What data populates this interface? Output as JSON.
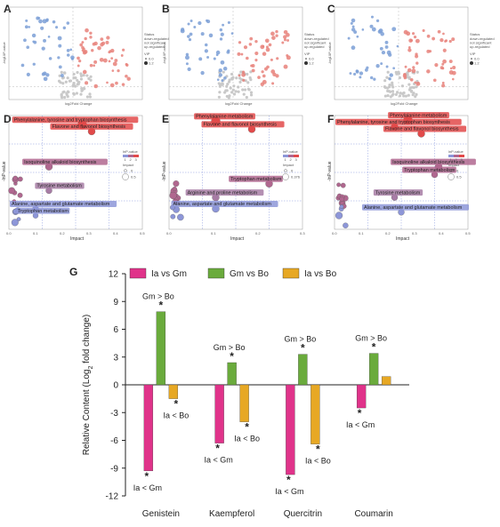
{
  "panels": {
    "A": "A",
    "B": "B",
    "C": "C",
    "D": "D",
    "E": "E",
    "F": "F",
    "G": "G"
  },
  "volcano": {
    "x_label": "log2Fold Change",
    "y_label": "-log10P-value",
    "legend_status": "Status",
    "legend_status_items": [
      "down-regulated",
      "not significant",
      "up-regulated"
    ],
    "legend_vip": "VIP",
    "legend_vip_items": [
      "0.0",
      "1.2"
    ],
    "colors": {
      "down": "#7b9fd6",
      "ns": "#c9c9c9",
      "up": "#e8817a"
    }
  },
  "pathway": {
    "x_label": "Impact",
    "y_label": "-lnP-value",
    "legend_title": "lnP-value",
    "legend_impact": "Impact",
    "D": {
      "labels": [
        "Phenylalanine, tyrosine and tryptophan biosynthesis",
        "Flavone and flavonol biosynthesis",
        "Isoquinoline alkaloid biosynthesis",
        "Tyrosine metabolism",
        "Alanine, aspartate and glutamate metabolism",
        "Tryptophan metabolism"
      ],
      "ticks_x": [
        "0.0",
        "0.1",
        "0.2",
        "0.3",
        "0.4",
        "0.5"
      ],
      "impact_legend": [
        "0",
        "0.5"
      ],
      "scale": [
        "1",
        "2",
        "3"
      ]
    },
    "E": {
      "labels": [
        "Phenylalanine metabolism",
        "Flavone and flavonol biosynthesis",
        "Tryptophan metabolism",
        "Arginine and proline metabolism",
        "Alanine, aspartate and glutamate metabolism"
      ],
      "ticks_x": [
        "0.0",
        "0.1",
        "0.2",
        "0.3"
      ],
      "impact_legend": [
        "0",
        "0.376"
      ],
      "scale": [
        "1",
        "2",
        "3"
      ]
    },
    "F": {
      "labels": [
        "Phenylalanine metabolism",
        "Phenylalanine, tyrosine and tryptophan biosynthesis",
        "Flavone and flavonol biosynthesis",
        "Isoquinoline alkaloid biosynthesis",
        "Tryptophan metabolism",
        "Tyrosine metabolism",
        "Alanine, aspartate and glutamate metabolism"
      ],
      "ticks_x": [
        "0.0",
        "0.1",
        "0.2",
        "0.3",
        "0.4",
        "0.5"
      ],
      "impact_legend": [
        "0",
        "0.5"
      ],
      "scale": [
        "1",
        "2",
        "3"
      ]
    }
  },
  "chart_data": {
    "type": "bar",
    "ylabel": "Relative Content (Log2 fold change)",
    "ylim": [
      -12,
      12
    ],
    "yticks": [
      "12",
      "9",
      "6",
      "3",
      "0",
      "-3",
      "-6",
      "-9",
      "-12"
    ],
    "categories": [
      "Genistein",
      "Kaempferol",
      "Quercitrin",
      "Coumarin"
    ],
    "series": [
      {
        "name": "Ia vs Gm",
        "color": "#e0338a",
        "values": [
          -9.3,
          -6.3,
          -9.7,
          -2.5
        ]
      },
      {
        "name": "Gm vs Bo",
        "color": "#6aab3c",
        "values": [
          7.9,
          2.4,
          3.3,
          3.4
        ]
      },
      {
        "name": "Ia vs Bo",
        "color": "#e7a824",
        "values": [
          -1.5,
          -4.0,
          -6.4,
          0.9
        ]
      }
    ],
    "annotations": [
      {
        "category": "Genistein",
        "series": "Gm vs Bo",
        "label": "Gm > Bo",
        "star": "*"
      },
      {
        "category": "Genistein",
        "series": "Ia vs Gm",
        "label": "Ia < Gm",
        "star": "*"
      },
      {
        "category": "Genistein",
        "series": "Ia vs Bo",
        "label": "Ia < Bo",
        "star": "*"
      },
      {
        "category": "Kaempferol",
        "series": "Gm vs Bo",
        "label": "Gm > Bo",
        "star": "*"
      },
      {
        "category": "Kaempferol",
        "series": "Ia vs Gm",
        "label": "Ia < Gm",
        "star": "*"
      },
      {
        "category": "Kaempferol",
        "series": "Ia vs Bo",
        "label": "Ia < Bo",
        "star": "*"
      },
      {
        "category": "Quercitrin",
        "series": "Gm vs Bo",
        "label": "Gm > Bo",
        "star": "*"
      },
      {
        "category": "Quercitrin",
        "series": "Ia vs Gm",
        "label": "Ia < Gm",
        "star": "*"
      },
      {
        "category": "Quercitrin",
        "series": "Ia vs Bo",
        "label": "Ia < Bo",
        "star": "*"
      },
      {
        "category": "Coumarin",
        "series": "Gm vs Bo",
        "label": "Gm > Bo",
        "star": "*"
      },
      {
        "category": "Coumarin",
        "series": "Ia vs Gm",
        "label": "Ia < Gm",
        "star": "*"
      }
    ]
  }
}
